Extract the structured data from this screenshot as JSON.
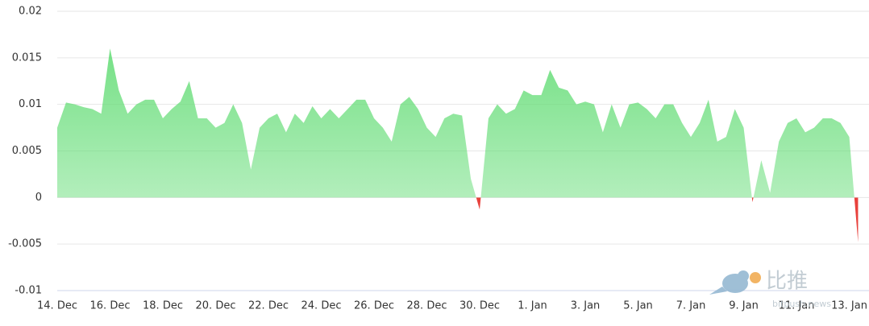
{
  "chart_data": {
    "type": "area",
    "categories": [
      "14. Dec",
      null,
      null,
      null,
      null,
      null,
      "16. Dec",
      null,
      null,
      null,
      null,
      null,
      "18. Dec",
      null,
      null,
      null,
      null,
      null,
      "20. Dec",
      null,
      null,
      null,
      null,
      null,
      "22. Dec",
      null,
      null,
      null,
      null,
      null,
      "24. Dec",
      null,
      null,
      null,
      null,
      null,
      "26. Dec",
      null,
      null,
      null,
      null,
      null,
      "28. Dec",
      null,
      null,
      null,
      null,
      null,
      "30. Dec",
      null,
      null,
      null,
      null,
      null,
      "1. Jan",
      null,
      null,
      null,
      null,
      null,
      "3. Jan",
      null,
      null,
      null,
      null,
      null,
      "5. Jan",
      null,
      null,
      null,
      null,
      null,
      "7. Jan",
      null,
      null,
      null,
      null,
      null,
      "9. Jan",
      null,
      null,
      null,
      null,
      null,
      "11. Jan",
      null,
      null,
      null,
      null,
      null,
      "13. Jan",
      null
    ],
    "values": [
      0.0075,
      0.0102,
      0.01,
      0.0097,
      0.0095,
      0.009,
      0.016,
      0.0115,
      0.009,
      0.01,
      0.0105,
      0.0105,
      0.0085,
      0.0095,
      0.0103,
      0.0125,
      0.0085,
      0.0085,
      0.0075,
      0.008,
      0.01,
      0.008,
      0.003,
      0.0075,
      0.0085,
      0.009,
      0.007,
      0.009,
      0.008,
      0.0098,
      0.0085,
      0.0095,
      0.0085,
      0.0095,
      0.0105,
      0.0105,
      0.0085,
      0.0075,
      0.006,
      0.01,
      0.0108,
      0.0095,
      0.0075,
      0.0065,
      0.0085,
      0.009,
      0.0088,
      0.002,
      -0.0013,
      0.0085,
      0.01,
      0.009,
      0.0095,
      0.0115,
      0.011,
      0.011,
      0.0137,
      0.0118,
      0.0115,
      0.01,
      0.0103,
      0.01,
      0.007,
      0.01,
      0.0075,
      0.01,
      0.0102,
      0.0095,
      0.0085,
      0.01,
      0.01,
      0.008,
      0.0065,
      0.008,
      0.0105,
      0.006,
      0.0065,
      0.0095,
      0.0075,
      -0.0005,
      0.004,
      0.0005,
      0.006,
      0.008,
      0.0085,
      0.007,
      0.0075,
      0.0085,
      0.0085,
      0.008,
      0.0065,
      -0.0048
    ],
    "color": "#66dd78",
    "negative_color": "#e8413c",
    "ylim": [
      -0.01,
      0.02
    ],
    "yticks": [
      -0.01,
      -0.005,
      0,
      0.005,
      0.01,
      0.015,
      0.02
    ],
    "grid": true,
    "watermark": "比推",
    "watermark_url": "bitpush.news"
  }
}
